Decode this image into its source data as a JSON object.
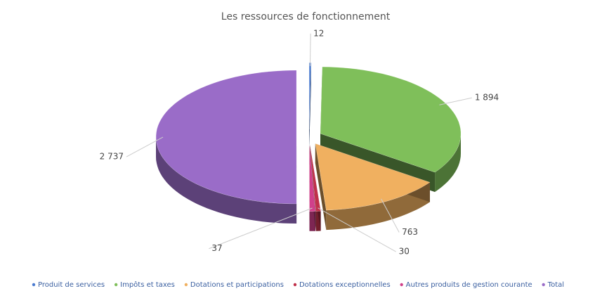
{
  "chart_data": {
    "type": "pie",
    "title": "Les ressources de fonctionnement",
    "categories": [
      "Produit de services",
      "Impôts et taxes",
      "Dotations et participations",
      "Dotations exceptionnelles",
      "Autres produits de gestion courante",
      "Total"
    ],
    "values": [
      12,
      1894,
      763,
      30,
      37,
      2737
    ],
    "value_labels": [
      "12",
      "1 894",
      "763",
      "30",
      "37",
      "2 737"
    ],
    "colors": [
      "#4a7bd0",
      "#7fbf5a",
      "#f0b060",
      "#c0304a",
      "#d0408a",
      "#9a6cc8"
    ],
    "legend": "bottom"
  }
}
